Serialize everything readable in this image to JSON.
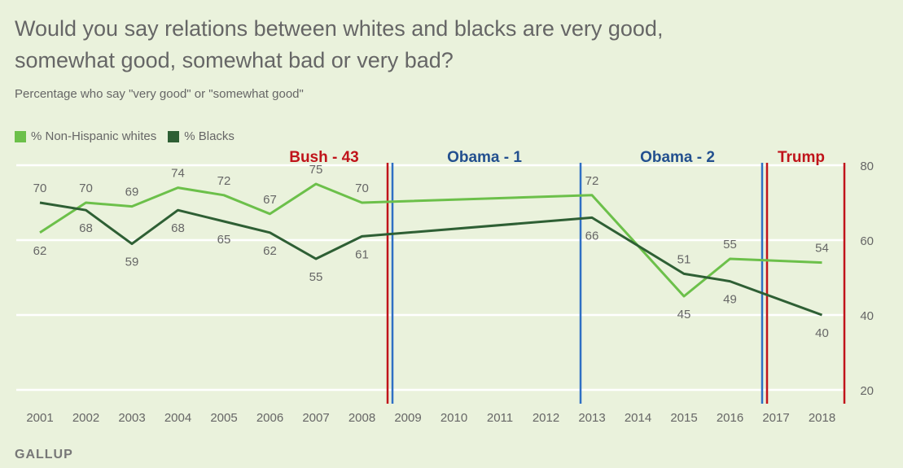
{
  "title": "Would you say relations between whites and blacks are very good, somewhat good, somewhat bad or very bad?",
  "subtitle": "Percentage who say \"very good\" or \"somewhat good\"",
  "source": "GALLUP",
  "legend": [
    {
      "label": "% Non-Hispanic whites",
      "color": "#6cc04a"
    },
    {
      "label": "% Blacks",
      "color": "#2e5f34"
    }
  ],
  "eras": [
    {
      "label": "Bush - 43",
      "color": "#c0141b"
    },
    {
      "label": "Obama - 1",
      "color": "#23508f"
    },
    {
      "label": "Obama - 2",
      "color": "#23508f"
    },
    {
      "label": "Trump",
      "color": "#c0141b"
    }
  ],
  "chart_data": {
    "type": "line",
    "x": [
      2001,
      2002,
      2003,
      2004,
      2005,
      2006,
      2007,
      2008,
      2013,
      2015,
      2016,
      2018
    ],
    "x_tick_labels": [
      "2001",
      "2002",
      "2003",
      "2004",
      "2005",
      "2006",
      "2007",
      "2008",
      "2009",
      "2010",
      "2011",
      "2012",
      "2013",
      "2014",
      "2015",
      "2016",
      "2017",
      "2018"
    ],
    "ylim": [
      20,
      80
    ],
    "y_ticks": [
      20,
      40,
      60,
      80
    ],
    "series": [
      {
        "name": "% Non-Hispanic whites",
        "color": "#6cc04a",
        "values": [
          62,
          70,
          69,
          74,
          72,
          67,
          75,
          70,
          72,
          45,
          55,
          54
        ],
        "labels": [
          "62",
          "70",
          "69",
          "74",
          "72",
          "67",
          "75",
          "70",
          "72",
          "45",
          "55",
          "54"
        ]
      },
      {
        "name": "% Blacks",
        "color": "#2e5f34",
        "values": [
          70,
          68,
          59,
          68,
          65,
          62,
          55,
          61,
          66,
          51,
          49,
          40
        ],
        "labels": [
          "70",
          "68",
          "59",
          "68",
          "65",
          "62",
          "55",
          "61",
          "66",
          "51",
          "49",
          "40"
        ]
      }
    ],
    "title": "Would you say relations between whites and blacks are very good, somewhat good, somewhat bad or very bad?",
    "xlabel": "",
    "ylabel": "",
    "grid": true,
    "legend": "top-left"
  }
}
